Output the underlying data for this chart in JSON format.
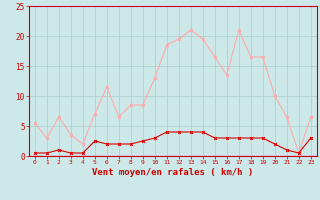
{
  "hours": [
    0,
    1,
    2,
    3,
    4,
    5,
    6,
    7,
    8,
    9,
    10,
    11,
    12,
    13,
    14,
    15,
    16,
    17,
    18,
    19,
    20,
    21,
    22,
    23
  ],
  "wind_avg": [
    0.5,
    0.5,
    1.0,
    0.5,
    0.5,
    2.5,
    2.0,
    2.0,
    2.0,
    2.5,
    3.0,
    4.0,
    4.0,
    4.0,
    4.0,
    3.0,
    3.0,
    3.0,
    3.0,
    3.0,
    2.0,
    1.0,
    0.5,
    3.0
  ],
  "wind_gust": [
    5.5,
    3.0,
    6.5,
    3.5,
    2.0,
    7.0,
    11.5,
    6.5,
    8.5,
    8.5,
    13.0,
    18.5,
    19.5,
    21.0,
    19.5,
    16.5,
    13.5,
    21.0,
    16.5,
    16.5,
    10.0,
    6.5,
    0.5,
    6.5
  ],
  "avg_color": "#dd0000",
  "gust_color": "#ffaaaa",
  "bg_color": "#cce8e8",
  "grid_color": "#aacccc",
  "xlabel": "Vent moyen/en rafales ( km/h )",
  "ylim": [
    0,
    25
  ],
  "yticks": [
    0,
    5,
    10,
    15,
    20,
    25
  ],
  "tick_color": "#cc0000",
  "font_color": "#cc0000",
  "axis_color": "#cc0000"
}
